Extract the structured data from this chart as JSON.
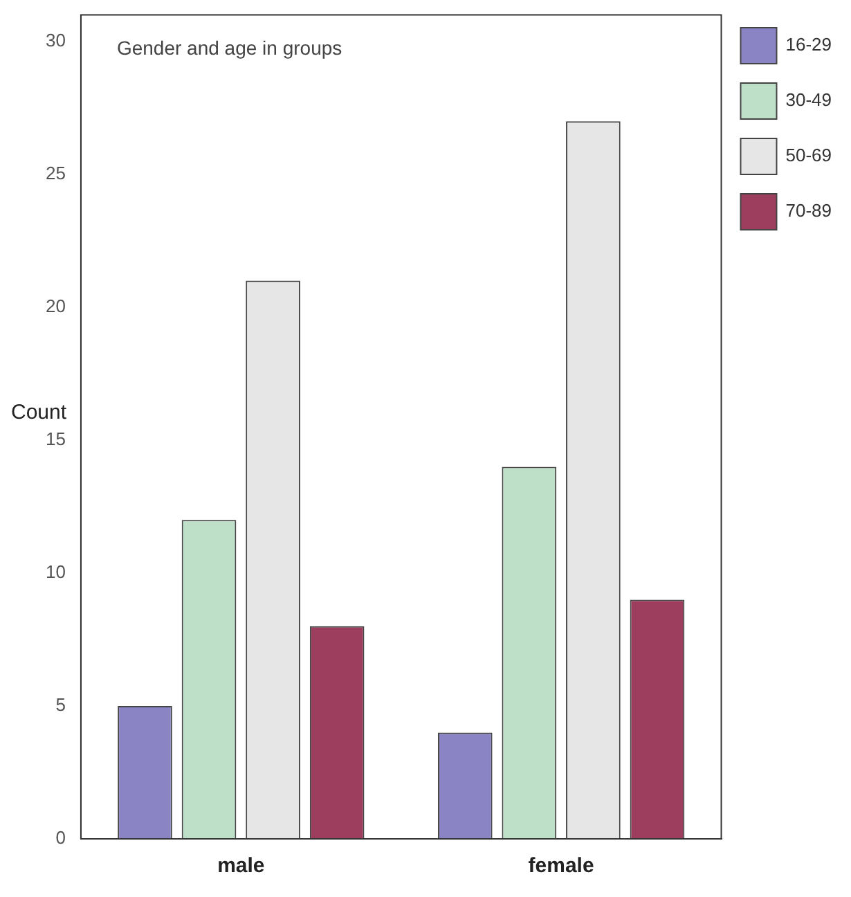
{
  "chart_data": {
    "type": "bar",
    "title": "Gender and age in groups",
    "ylabel": "Count",
    "categories": [
      "male",
      "female"
    ],
    "series": [
      {
        "name": "16-29",
        "color": "#8a84c4",
        "values": [
          5,
          4
        ]
      },
      {
        "name": "30-49",
        "color": "#bfe0c8",
        "values": [
          12,
          14
        ]
      },
      {
        "name": "50-69",
        "color": "#e6e6e6",
        "values": [
          21,
          27
        ]
      },
      {
        "name": "70-89",
        "color": "#9e3e5e",
        "values": [
          8,
          9
        ]
      }
    ],
    "ylim": [
      0,
      31
    ],
    "yticks": [
      0,
      5,
      10,
      15,
      20,
      25,
      30
    ],
    "grid": false,
    "legend": "right"
  }
}
